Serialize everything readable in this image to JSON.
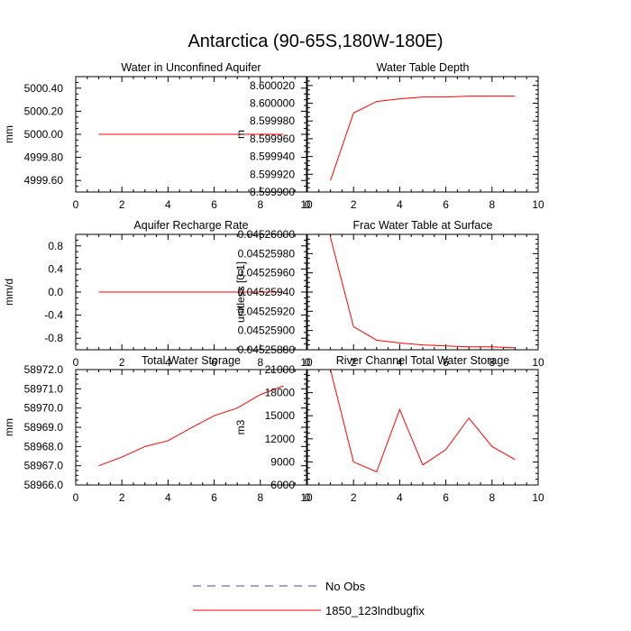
{
  "title": "Antarctica (90-65S,180W-180E)",
  "colors": {
    "series": "#ff0000",
    "obs": "#4a4aa8",
    "axis": "#000000",
    "background": "#ffffff"
  },
  "legend": [
    {
      "label": "No Obs",
      "style": "dashed",
      "color": "#4a4aa8"
    },
    {
      "label": "1850_123lndbugfix",
      "style": "solid",
      "color": "#ff0000"
    }
  ],
  "chart_data": [
    {
      "type": "line",
      "title": "Water in Unconfined Aquifer",
      "xlabel": "",
      "ylabel": "mm",
      "xlim": [
        0,
        10
      ],
      "ylim": [
        4999.5,
        5000.5
      ],
      "xticks": [
        0,
        2,
        4,
        6,
        8,
        10
      ],
      "xtick_labels": [
        "0",
        "2",
        "4",
        "6",
        "8",
        "10"
      ],
      "yticks": [
        4999.6,
        4999.8,
        5000.0,
        5000.2,
        5000.4
      ],
      "ytick_labels": [
        "4999.60",
        "4999.80",
        "5000.00",
        "5000.20",
        "5000.40"
      ],
      "series": [
        {
          "name": "1850_123lndbugfix",
          "x": [
            1,
            2,
            3,
            4,
            5,
            6,
            7,
            8,
            9
          ],
          "values": [
            5000.0,
            5000.0,
            5000.0,
            5000.0,
            5000.0,
            5000.0,
            5000.0,
            5000.0,
            5000.0
          ]
        }
      ]
    },
    {
      "type": "line",
      "title": "Water Table Depth",
      "xlabel": "",
      "ylabel": "m",
      "xlim": [
        0,
        10
      ],
      "ylim": [
        8.5999,
        8.60003
      ],
      "xticks": [
        0,
        2,
        4,
        6,
        8,
        10
      ],
      "xtick_labels": [
        "0",
        "2",
        "4",
        "6",
        "8",
        "10"
      ],
      "yticks": [
        8.5999,
        8.59992,
        8.59994,
        8.59996,
        8.59998,
        8.6,
        8.60002
      ],
      "ytick_labels": [
        "8.599900",
        "8.599920",
        "8.599940",
        "8.599960",
        "8.599980",
        "8.600000",
        "8.600020"
      ],
      "series": [
        {
          "name": "1850_123lndbugfix",
          "x": [
            1,
            2,
            3,
            4,
            5,
            6,
            7,
            8,
            9
          ],
          "values": [
            8.599913,
            8.599989,
            8.600002,
            8.600005,
            8.600007,
            8.600007,
            8.600008,
            8.600008,
            8.600008
          ]
        }
      ]
    },
    {
      "type": "line",
      "title": "Aquifer Recharge Rate",
      "xlabel": "",
      "ylabel": "mm/d",
      "xlim": [
        0,
        10
      ],
      "ylim": [
        -1.0,
        1.0
      ],
      "xticks": [
        0,
        2,
        4,
        6,
        8,
        10
      ],
      "xtick_labels": [
        "0",
        "2",
        "4",
        "6",
        "8",
        "10"
      ],
      "yticks": [
        -0.8,
        -0.4,
        0.0,
        0.4,
        0.8
      ],
      "ytick_labels": [
        "-0.8",
        "-0.4",
        "0.0",
        "0.4",
        "0.8"
      ],
      "series": [
        {
          "name": "1850_123lndbugfix",
          "x": [
            1,
            2,
            3,
            4,
            5,
            6,
            7,
            8,
            9
          ],
          "values": [
            0,
            0,
            0,
            0,
            0,
            0,
            0,
            0,
            0
          ]
        }
      ]
    },
    {
      "type": "line",
      "title": "Frac Water Table at Surface",
      "xlabel": "",
      "ylabel": "unitless [0-1]",
      "xlim": [
        0,
        10
      ],
      "ylim": [
        0.0452588,
        0.04526
      ],
      "xticks": [
        0,
        2,
        4,
        6,
        8,
        10
      ],
      "xtick_labels": [
        "0",
        "2",
        "4",
        "6",
        "8",
        "10"
      ],
      "yticks": [
        0.0452588,
        0.045259,
        0.0452592,
        0.0452594,
        0.0452596,
        0.0452598,
        0.04526
      ],
      "ytick_labels": [
        "0.04525880",
        "0.04525900",
        "0.04525920",
        "0.04525940",
        "0.04525960",
        "0.04525980",
        "0.04526000"
      ],
      "series": [
        {
          "name": "1850_123lndbugfix",
          "x": [
            1,
            2,
            3,
            4,
            5,
            6,
            7,
            8,
            9
          ],
          "values": [
            0.04525997,
            0.04525904,
            0.0452589,
            0.04525887,
            0.04525885,
            0.04525884,
            0.04525883,
            0.04525883,
            0.04525882
          ]
        }
      ]
    },
    {
      "type": "line",
      "title": "Total Water Storage",
      "xlabel": "",
      "ylabel": "mm",
      "xlim": [
        0,
        10
      ],
      "ylim": [
        58966.0,
        58972.0
      ],
      "xticks": [
        0,
        2,
        4,
        6,
        8,
        10
      ],
      "xtick_labels": [
        "0",
        "2",
        "4",
        "6",
        "8",
        "10"
      ],
      "yticks": [
        58966.0,
        58967.0,
        58968.0,
        58969.0,
        58970.0,
        58971.0,
        58972.0
      ],
      "ytick_labels": [
        "58966.0",
        "58967.0",
        "58968.0",
        "58969.0",
        "58970.0",
        "58971.0",
        "58972.0"
      ],
      "series": [
        {
          "name": "1850_123lndbugfix",
          "x": [
            1,
            2,
            3,
            4,
            5,
            6,
            7,
            8,
            9
          ],
          "values": [
            58967.0,
            58967.45,
            58968.0,
            58968.3,
            58968.97,
            58969.6,
            58970.0,
            58970.7,
            58971.15
          ]
        }
      ]
    },
    {
      "type": "line",
      "title": "River Channel Total Water Storage",
      "xlabel": "",
      "ylabel": "m3",
      "xlim": [
        0,
        10
      ],
      "ylim": [
        6000,
        21000
      ],
      "xticks": [
        0,
        2,
        4,
        6,
        8,
        10
      ],
      "xtick_labels": [
        "0",
        "2",
        "4",
        "6",
        "8",
        "10"
      ],
      "yticks": [
        6000,
        9000,
        12000,
        15000,
        18000,
        21000
      ],
      "ytick_labels": [
        "6000",
        "9000",
        "12000",
        "15000",
        "18000",
        "21000"
      ],
      "series": [
        {
          "name": "1850_123lndbugfix",
          "x": [
            1,
            2,
            3,
            4,
            5,
            6,
            7,
            8,
            9
          ],
          "values": [
            21000,
            9000,
            7700,
            15800,
            8600,
            10600,
            14700,
            11000,
            9300
          ]
        }
      ]
    }
  ]
}
